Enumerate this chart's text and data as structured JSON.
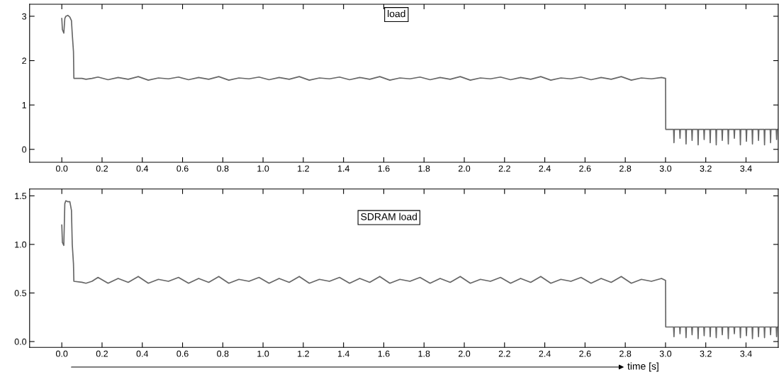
{
  "chart_data": [
    {
      "type": "line",
      "title": "load",
      "x": [
        0.0,
        0.003,
        0.01,
        0.015,
        0.02,
        0.03,
        0.04,
        0.048,
        0.052,
        0.058,
        0.06,
        0.1,
        0.12,
        0.15,
        0.18,
        0.23,
        0.28,
        0.33,
        0.38,
        0.43,
        0.48,
        0.53,
        0.58,
        0.63,
        0.68,
        0.73,
        0.78,
        0.83,
        0.88,
        0.93,
        0.98,
        1.03,
        1.08,
        1.13,
        1.18,
        1.23,
        1.28,
        1.33,
        1.38,
        1.43,
        1.48,
        1.53,
        1.58,
        1.63,
        1.68,
        1.73,
        1.78,
        1.83,
        1.88,
        1.93,
        1.98,
        2.03,
        2.08,
        2.13,
        2.18,
        2.23,
        2.28,
        2.33,
        2.38,
        2.43,
        2.48,
        2.53,
        2.58,
        2.63,
        2.68,
        2.73,
        2.78,
        2.83,
        2.88,
        2.93,
        2.98,
        3.0,
        3.001,
        3.04,
        3.042,
        3.044,
        3.07,
        3.072,
        3.074,
        3.1,
        3.102,
        3.104,
        3.13,
        3.132,
        3.134,
        3.16,
        3.162,
        3.164,
        3.19,
        3.192,
        3.194,
        3.22,
        3.222,
        3.224,
        3.25,
        3.252,
        3.254,
        3.28,
        3.282,
        3.284,
        3.31,
        3.312,
        3.314,
        3.34,
        3.342,
        3.344,
        3.37,
        3.372,
        3.374,
        3.4,
        3.402,
        3.404,
        3.43,
        3.432,
        3.434,
        3.46,
        3.462,
        3.464,
        3.49,
        3.492,
        3.494,
        3.52,
        3.522,
        3.524,
        3.55,
        3.552,
        3.554,
        3.56
      ],
      "series": [
        {
          "color": "#666666",
          "values": [
            2.95,
            2.7,
            2.62,
            2.95,
            3.0,
            3.02,
            2.98,
            2.9,
            2.6,
            2.2,
            1.6,
            1.6,
            1.58,
            1.6,
            1.63,
            1.57,
            1.62,
            1.58,
            1.64,
            1.56,
            1.61,
            1.59,
            1.63,
            1.57,
            1.62,
            1.58,
            1.64,
            1.56,
            1.61,
            1.59,
            1.63,
            1.57,
            1.62,
            1.58,
            1.64,
            1.56,
            1.61,
            1.59,
            1.63,
            1.57,
            1.62,
            1.58,
            1.64,
            1.56,
            1.61,
            1.59,
            1.63,
            1.57,
            1.62,
            1.58,
            1.64,
            1.56,
            1.61,
            1.59,
            1.63,
            1.57,
            1.62,
            1.58,
            1.64,
            1.56,
            1.61,
            1.59,
            1.63,
            1.57,
            1.62,
            1.58,
            1.64,
            1.56,
            1.61,
            1.59,
            1.62,
            1.6,
            0.45,
            0.45,
            0.15,
            0.45,
            0.45,
            0.25,
            0.45,
            0.45,
            0.12,
            0.45,
            0.45,
            0.2,
            0.45,
            0.45,
            0.1,
            0.45,
            0.45,
            0.22,
            0.45,
            0.45,
            0.15,
            0.45,
            0.45,
            0.1,
            0.45,
            0.45,
            0.2,
            0.45,
            0.45,
            0.12,
            0.45,
            0.45,
            0.25,
            0.45,
            0.45,
            0.1,
            0.45,
            0.45,
            0.18,
            0.45,
            0.45,
            0.12,
            0.45,
            0.45,
            0.2,
            0.45,
            0.45,
            0.1,
            0.45,
            0.45,
            0.15,
            0.45,
            0.45,
            0.22,
            0.45,
            0.45
          ]
        }
      ],
      "xlim": [
        -0.16,
        3.56
      ],
      "xticks": [
        {
          "value": 0,
          "label": "0.0"
        },
        0.2,
        0.4,
        0.6,
        0.8,
        {
          "value": 1,
          "label": "1.0"
        },
        1.2,
        1.4,
        1.6,
        1.8,
        {
          "value": 2,
          "label": "2.0"
        },
        2.2,
        2.4,
        2.6,
        2.8,
        {
          "value": 3,
          "label": "3.0"
        },
        3.2,
        3.4
      ],
      "ylim": [
        -0.29,
        3.27
      ],
      "yticks": [
        0,
        1,
        2,
        3
      ],
      "grid": false
    },
    {
      "type": "line",
      "title": "SDRAM load",
      "xlabel": "time [s]",
      "x": [
        0.0,
        0.003,
        0.01,
        0.015,
        0.02,
        0.03,
        0.04,
        0.048,
        0.052,
        0.058,
        0.06,
        0.1,
        0.12,
        0.15,
        0.18,
        0.23,
        0.28,
        0.33,
        0.38,
        0.43,
        0.48,
        0.53,
        0.58,
        0.63,
        0.68,
        0.73,
        0.78,
        0.83,
        0.88,
        0.93,
        0.98,
        1.03,
        1.08,
        1.13,
        1.18,
        1.23,
        1.28,
        1.33,
        1.38,
        1.43,
        1.48,
        1.53,
        1.58,
        1.63,
        1.68,
        1.73,
        1.78,
        1.83,
        1.88,
        1.93,
        1.98,
        2.03,
        2.08,
        2.13,
        2.18,
        2.23,
        2.28,
        2.33,
        2.38,
        2.43,
        2.48,
        2.53,
        2.58,
        2.63,
        2.68,
        2.73,
        2.78,
        2.83,
        2.88,
        2.93,
        2.98,
        3.0,
        3.001,
        3.04,
        3.042,
        3.044,
        3.07,
        3.072,
        3.074,
        3.1,
        3.102,
        3.104,
        3.13,
        3.132,
        3.134,
        3.16,
        3.162,
        3.164,
        3.19,
        3.192,
        3.194,
        3.22,
        3.222,
        3.224,
        3.25,
        3.252,
        3.254,
        3.28,
        3.282,
        3.284,
        3.31,
        3.312,
        3.314,
        3.34,
        3.342,
        3.344,
        3.37,
        3.372,
        3.374,
        3.4,
        3.402,
        3.404,
        3.43,
        3.432,
        3.434,
        3.46,
        3.462,
        3.464,
        3.49,
        3.492,
        3.494,
        3.52,
        3.522,
        3.524,
        3.55,
        3.552,
        3.554,
        3.56
      ],
      "series": [
        {
          "color": "#666666",
          "values": [
            1.2,
            1.02,
            0.99,
            1.42,
            1.45,
            1.44,
            1.44,
            1.35,
            1.0,
            0.8,
            0.62,
            0.61,
            0.6,
            0.62,
            0.66,
            0.6,
            0.65,
            0.61,
            0.67,
            0.6,
            0.64,
            0.62,
            0.66,
            0.6,
            0.65,
            0.61,
            0.67,
            0.6,
            0.64,
            0.62,
            0.66,
            0.6,
            0.65,
            0.61,
            0.67,
            0.6,
            0.64,
            0.62,
            0.66,
            0.6,
            0.65,
            0.61,
            0.67,
            0.6,
            0.64,
            0.62,
            0.66,
            0.6,
            0.65,
            0.61,
            0.67,
            0.6,
            0.64,
            0.62,
            0.66,
            0.6,
            0.65,
            0.61,
            0.67,
            0.6,
            0.64,
            0.62,
            0.66,
            0.6,
            0.65,
            0.61,
            0.67,
            0.6,
            0.64,
            0.62,
            0.65,
            0.63,
            0.15,
            0.15,
            0.05,
            0.15,
            0.15,
            0.08,
            0.15,
            0.15,
            0.04,
            0.15,
            0.15,
            0.07,
            0.15,
            0.15,
            0.03,
            0.15,
            0.15,
            0.06,
            0.15,
            0.15,
            0.05,
            0.15,
            0.15,
            0.04,
            0.15,
            0.15,
            0.07,
            0.15,
            0.15,
            0.03,
            0.15,
            0.15,
            0.08,
            0.15,
            0.15,
            0.04,
            0.15,
            0.15,
            0.06,
            0.15,
            0.15,
            0.03,
            0.15,
            0.15,
            0.05,
            0.15,
            0.15,
            0.04,
            0.15,
            0.15,
            0.07,
            0.15,
            0.15,
            0.05,
            0.15,
            0.15
          ]
        }
      ],
      "xlim": [
        -0.16,
        3.56
      ],
      "xticks": [
        {
          "value": 0,
          "label": "0.0"
        },
        0.2,
        0.4,
        0.6,
        0.8,
        {
          "value": 1,
          "label": "1.0"
        },
        1.2,
        1.4,
        1.6,
        1.8,
        {
          "value": 2,
          "label": "2.0"
        },
        2.2,
        2.4,
        2.6,
        2.8,
        {
          "value": 3,
          "label": "3.0"
        },
        3.2,
        3.4
      ],
      "ylim": [
        -0.06,
        1.57
      ],
      "yticks": [
        {
          "value": 0,
          "label": "0.0"
        },
        0.5,
        {
          "value": 1,
          "label": "1.0"
        },
        1.5
      ],
      "grid": false
    }
  ]
}
